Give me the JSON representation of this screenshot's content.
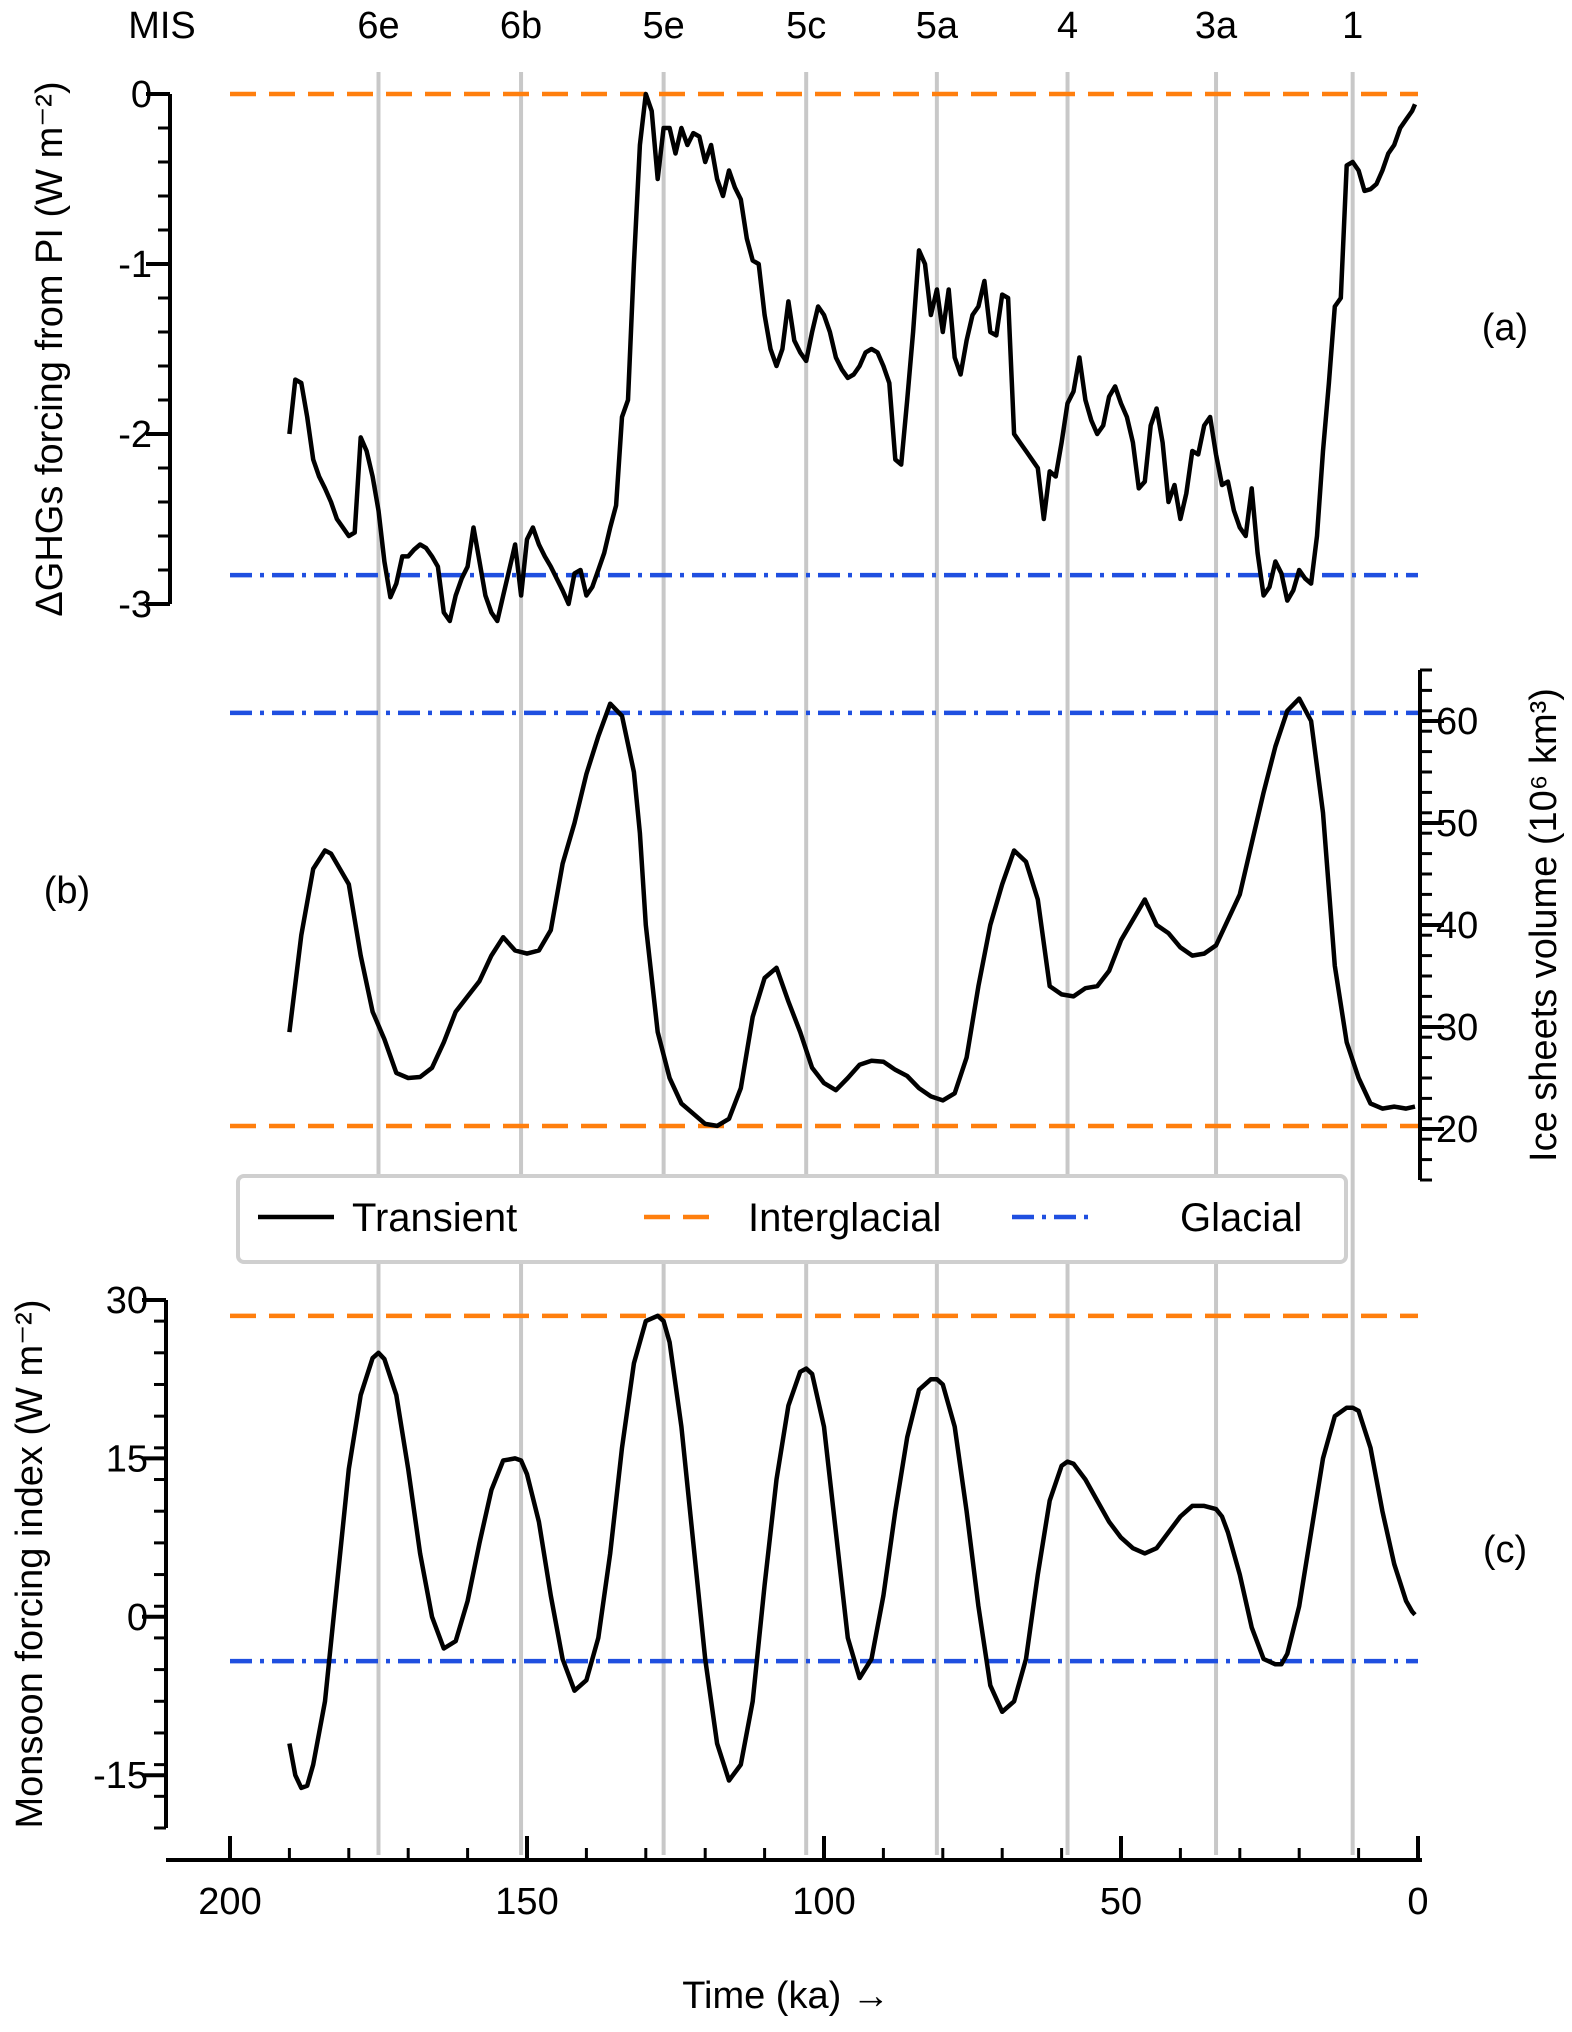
{
  "chart_data": {
    "type": "line",
    "colors": {
      "transient": "#000000",
      "interglacial": "#ff7f0e",
      "glacial": "#1f4fe0",
      "gridlines": "#c8c8c8"
    },
    "xaxis": {
      "label": "Time (ka) →",
      "lim": [
        200,
        0
      ],
      "ticks": [
        "200",
        "150",
        "100",
        "50",
        "0"
      ]
    },
    "mis": {
      "title": "MIS",
      "markers": [
        {
          "label": "6e",
          "x": 175
        },
        {
          "label": "6b",
          "x": 151
        },
        {
          "label": "5e",
          "x": 127
        },
        {
          "label": "5c",
          "x": 103
        },
        {
          "label": "5a",
          "x": 81
        },
        {
          "label": "4",
          "x": 59
        },
        {
          "label": "3a",
          "x": 34
        },
        {
          "label": "1",
          "x": 11
        }
      ]
    },
    "legend": {
      "placement": "between-b-and-c",
      "items": [
        "Transient",
        "Interglacial",
        "Glacial"
      ]
    },
    "panels": [
      {
        "id": "a",
        "panel_label": "(a)",
        "ylabel": "ΔGHGs forcing from PI (W m⁻²)",
        "yaxis_side": "left",
        "ylim": [
          -3,
          0
        ],
        "yticks": [
          "0",
          "-1",
          "-2",
          "-3"
        ],
        "interglacial_level": 0,
        "glacial_level": -2.83,
        "transient": {
          "x": [
            190,
            189,
            188,
            187,
            186,
            185,
            184,
            183,
            182,
            181,
            180,
            179,
            178,
            177,
            176,
            175,
            174,
            173,
            172,
            171,
            170,
            169,
            168,
            167,
            166,
            165,
            164,
            163,
            162,
            161,
            160,
            159,
            158,
            157,
            156,
            155,
            154,
            153,
            152,
            151,
            150,
            149,
            148,
            147,
            146,
            145,
            144,
            143,
            142,
            141,
            140,
            139,
            138,
            137,
            136,
            135,
            134,
            133,
            132,
            131,
            130,
            129,
            128,
            127,
            126,
            125,
            124,
            123,
            122,
            121,
            120,
            119,
            118,
            117,
            116,
            115,
            114,
            113,
            112,
            111,
            110,
            109,
            108,
            107,
            106,
            105,
            104,
            103,
            102,
            101,
            100,
            99,
            98,
            97,
            96,
            95,
            94,
            93,
            92,
            91,
            90,
            89,
            88,
            87,
            86,
            85,
            84,
            83,
            82,
            81,
            80,
            79,
            78,
            77,
            76,
            75,
            74,
            73,
            72,
            71,
            70,
            69,
            68,
            67,
            66,
            65,
            64,
            63,
            62,
            61,
            60,
            59,
            58,
            57,
            56,
            55,
            54,
            53,
            52,
            51,
            50,
            49,
            48,
            47,
            46,
            45,
            44,
            43,
            42,
            41,
            40,
            39,
            38,
            37,
            36,
            35,
            34,
            33,
            32,
            31,
            30,
            29,
            28,
            27,
            26,
            25,
            24,
            23,
            22,
            21,
            20,
            19,
            18,
            17,
            16,
            15,
            14,
            13,
            12,
            11,
            10,
            9,
            8,
            7,
            6,
            5,
            4,
            3,
            2,
            1,
            0.5
          ],
          "y": [
            -2.0,
            -1.68,
            -1.7,
            -1.9,
            -2.15,
            -2.25,
            -2.32,
            -2.4,
            -2.5,
            -2.55,
            -2.6,
            -2.58,
            -2.02,
            -2.1,
            -2.25,
            -2.45,
            -2.75,
            -2.96,
            -2.88,
            -2.72,
            -2.72,
            -2.68,
            -2.65,
            -2.67,
            -2.72,
            -2.78,
            -3.05,
            -3.1,
            -2.95,
            -2.85,
            -2.78,
            -2.55,
            -2.75,
            -2.95,
            -3.05,
            -3.1,
            -2.95,
            -2.8,
            -2.65,
            -2.95,
            -2.62,
            -2.55,
            -2.65,
            -2.72,
            -2.78,
            -2.85,
            -2.92,
            -3.0,
            -2.82,
            -2.8,
            -2.95,
            -2.9,
            -2.8,
            -2.7,
            -2.55,
            -2.42,
            -1.9,
            -1.8,
            -1.0,
            -0.3,
            0.0,
            -0.1,
            -0.5,
            -0.2,
            -0.2,
            -0.35,
            -0.2,
            -0.3,
            -0.23,
            -0.25,
            -0.4,
            -0.3,
            -0.5,
            -0.6,
            -0.45,
            -0.55,
            -0.62,
            -0.85,
            -0.98,
            -1.0,
            -1.3,
            -1.5,
            -1.6,
            -1.5,
            -1.22,
            -1.45,
            -1.52,
            -1.57,
            -1.4,
            -1.25,
            -1.3,
            -1.4,
            -1.55,
            -1.62,
            -1.67,
            -1.65,
            -1.6,
            -1.52,
            -1.5,
            -1.52,
            -1.6,
            -1.7,
            -2.15,
            -2.18,
            -1.8,
            -1.4,
            -0.92,
            -1.0,
            -1.3,
            -1.15,
            -1.4,
            -1.15,
            -1.55,
            -1.65,
            -1.45,
            -1.3,
            -1.25,
            -1.1,
            -1.4,
            -1.42,
            -1.18,
            -1.2,
            -2.0,
            -2.05,
            -2.1,
            -2.15,
            -2.2,
            -2.5,
            -2.22,
            -2.25,
            -2.05,
            -1.82,
            -1.75,
            -1.55,
            -1.8,
            -1.92,
            -2.0,
            -1.95,
            -1.78,
            -1.72,
            -1.82,
            -1.9,
            -2.05,
            -2.32,
            -2.28,
            -1.95,
            -1.85,
            -2.05,
            -2.4,
            -2.3,
            -2.5,
            -2.35,
            -2.1,
            -2.12,
            -1.95,
            -1.9,
            -2.12,
            -2.3,
            -2.28,
            -2.45,
            -2.55,
            -2.6,
            -2.32,
            -2.7,
            -2.95,
            -2.9,
            -2.75,
            -2.82,
            -2.98,
            -2.92,
            -2.8,
            -2.85,
            -2.88,
            -2.6,
            -2.1,
            -1.7,
            -1.25,
            -1.2,
            -0.42,
            -0.4,
            -0.45,
            -0.57,
            -0.56,
            -0.53,
            -0.45,
            -0.35,
            -0.3,
            -0.2,
            -0.15,
            -0.1,
            -0.06
          ]
        }
      },
      {
        "id": "b",
        "panel_label": "(b)",
        "ylabel": "Ice sheets volume (10⁶ km³)",
        "yaxis_side": "right",
        "ylim": [
          15,
          65
        ],
        "yticks": [
          "20",
          "30",
          "40",
          "50",
          "60"
        ],
        "interglacial_level": 20.3,
        "glacial_level": 60.8,
        "transient": {
          "x": [
            190,
            188,
            186,
            184,
            183,
            182,
            180,
            178,
            176,
            174,
            172,
            170,
            168,
            166,
            164,
            162,
            160,
            158,
            156,
            154,
            152,
            150,
            148,
            146,
            144,
            142,
            140,
            138,
            136,
            134,
            132,
            131,
            130,
            128,
            126,
            124,
            122,
            120,
            118,
            116,
            114,
            112,
            110,
            108,
            106,
            104,
            102,
            100,
            98,
            96,
            94,
            92,
            90,
            88,
            86,
            84,
            82,
            80,
            78,
            76,
            74,
            72,
            70,
            68,
            66,
            64,
            62,
            60,
            58,
            56,
            54,
            52,
            50,
            48,
            46,
            44,
            42,
            40,
            38,
            36,
            34,
            32,
            30,
            28,
            26,
            24,
            22,
            20,
            18,
            16,
            14,
            12,
            10,
            8,
            6,
            4,
            2,
            0.5
          ],
          "y": [
            29.5,
            39,
            45.5,
            47.3,
            47,
            46,
            44,
            37,
            31.5,
            28.8,
            25.5,
            25,
            25.1,
            26,
            28.5,
            31.5,
            33,
            34.5,
            37,
            38.8,
            37.5,
            37.2,
            37.5,
            39.5,
            46,
            50,
            54.8,
            58.5,
            61.7,
            60.5,
            55,
            49,
            40,
            29.5,
            25,
            22.5,
            21.5,
            20.5,
            20.3,
            21,
            24,
            31,
            34.8,
            35.8,
            32.5,
            29.5,
            26,
            24.5,
            23.8,
            25,
            26.3,
            26.7,
            26.6,
            25.8,
            25.2,
            24,
            23.2,
            22.8,
            23.5,
            27,
            34,
            40,
            44,
            47.3,
            46.2,
            42.5,
            34,
            33.2,
            33,
            33.8,
            34,
            35.5,
            38.5,
            40.5,
            42.5,
            40,
            39.2,
            37.8,
            37,
            37.2,
            38,
            40.5,
            43,
            48,
            53,
            57.5,
            61,
            62.2,
            60,
            51,
            36,
            28.5,
            25,
            22.5,
            22,
            22.2,
            22,
            22.2
          ]
        }
      },
      {
        "id": "c",
        "panel_label": "(c)",
        "ylabel": "Monsoon forcing index (W m⁻²)",
        "yaxis_side": "left",
        "ylim": [
          -20,
          30
        ],
        "yticks": [
          "30",
          "15",
          "0",
          "-15"
        ],
        "interglacial_level": 28.5,
        "glacial_level": -4.2,
        "transient": {
          "x": [
            190,
            189,
            188,
            187,
            186,
            184,
            182,
            180,
            178,
            176,
            175,
            174,
            172,
            170,
            168,
            166,
            164,
            162,
            160,
            158,
            156,
            154,
            152,
            151,
            150,
            148,
            146,
            144,
            142,
            140,
            138,
            136,
            134,
            132,
            130,
            128,
            127,
            126,
            124,
            122,
            120,
            118,
            116,
            114,
            112,
            110,
            108,
            106,
            104,
            103,
            102,
            100,
            98,
            96,
            94,
            92,
            90,
            88,
            86,
            84,
            82,
            81,
            80,
            78,
            76,
            74,
            72,
            70,
            68,
            66,
            64,
            62,
            60,
            59,
            58,
            56,
            54,
            52,
            50,
            48,
            46,
            44,
            42,
            40,
            38,
            36,
            34,
            33,
            32,
            30,
            28,
            26,
            24,
            23,
            22,
            20,
            18,
            16,
            14,
            12,
            11,
            10,
            8,
            6,
            4,
            2,
            1,
            0.5
          ],
          "y": [
            -12,
            -15,
            -16.2,
            -16,
            -14,
            -8,
            3,
            14,
            21,
            24.5,
            25,
            24.4,
            21,
            14,
            6,
            0,
            -3,
            -2.3,
            1.5,
            7,
            12,
            14.8,
            15,
            14.8,
            13.5,
            9,
            2,
            -4,
            -7,
            -6,
            -2,
            6,
            16,
            24,
            28,
            28.5,
            28,
            26,
            18,
            7,
            -4,
            -12,
            -15.5,
            -14,
            -8,
            3,
            13,
            20,
            23.2,
            23.5,
            23,
            18,
            8,
            -2,
            -5.8,
            -4,
            2,
            10,
            17,
            21.5,
            22.5,
            22.5,
            22,
            18,
            10,
            1,
            -6.5,
            -9,
            -8,
            -4,
            4,
            11,
            14.3,
            14.7,
            14.5,
            13,
            11,
            9,
            7.5,
            6.5,
            6,
            6.5,
            8,
            9.5,
            10.5,
            10.5,
            10.2,
            9.5,
            8,
            4,
            -1,
            -4,
            -4.5,
            -4.5,
            -3.5,
            1,
            8,
            15,
            19,
            19.8,
            19.8,
            19.5,
            16,
            10,
            5,
            1.5,
            0.5,
            0.2
          ]
        }
      }
    ]
  }
}
